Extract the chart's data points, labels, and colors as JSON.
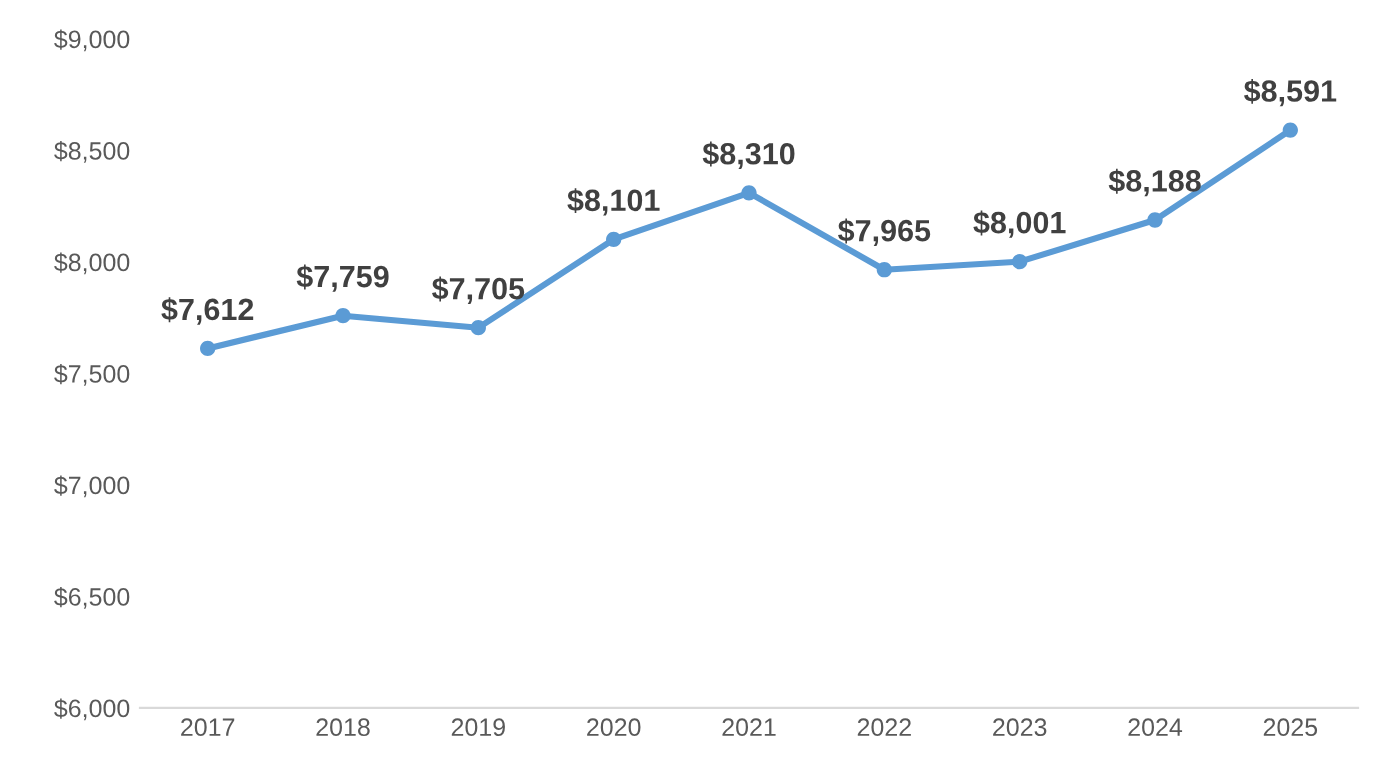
{
  "chart_data": {
    "type": "line",
    "categories": [
      "2017",
      "2018",
      "2019",
      "2020",
      "2021",
      "2022",
      "2023",
      "2024",
      "2025"
    ],
    "series": [
      {
        "color": "#5b9bd5",
        "values": [
          7612,
          7759,
          7705,
          8101,
          8310,
          7965,
          8001,
          8188,
          8591
        ],
        "value_labels": [
          "$7,612",
          "$7,759",
          "$7,705",
          "$8,101",
          "$8,310",
          "$7,965",
          "$8,001",
          "$8,188",
          "$8,591"
        ]
      }
    ],
    "ylim": [
      6000,
      9000
    ],
    "yticks": [
      {
        "value": 6000,
        "label": "$6,000"
      },
      {
        "value": 6500,
        "label": "$6,500"
      },
      {
        "value": 7000,
        "label": "$7,000"
      },
      {
        "value": 7500,
        "label": "$7,500"
      },
      {
        "value": 8000,
        "label": "$8,000"
      },
      {
        "value": 8500,
        "label": "$8,500"
      },
      {
        "value": 9000,
        "label": "$9,000"
      }
    ],
    "grid": false,
    "marker": "circle",
    "line_style": "solid"
  }
}
